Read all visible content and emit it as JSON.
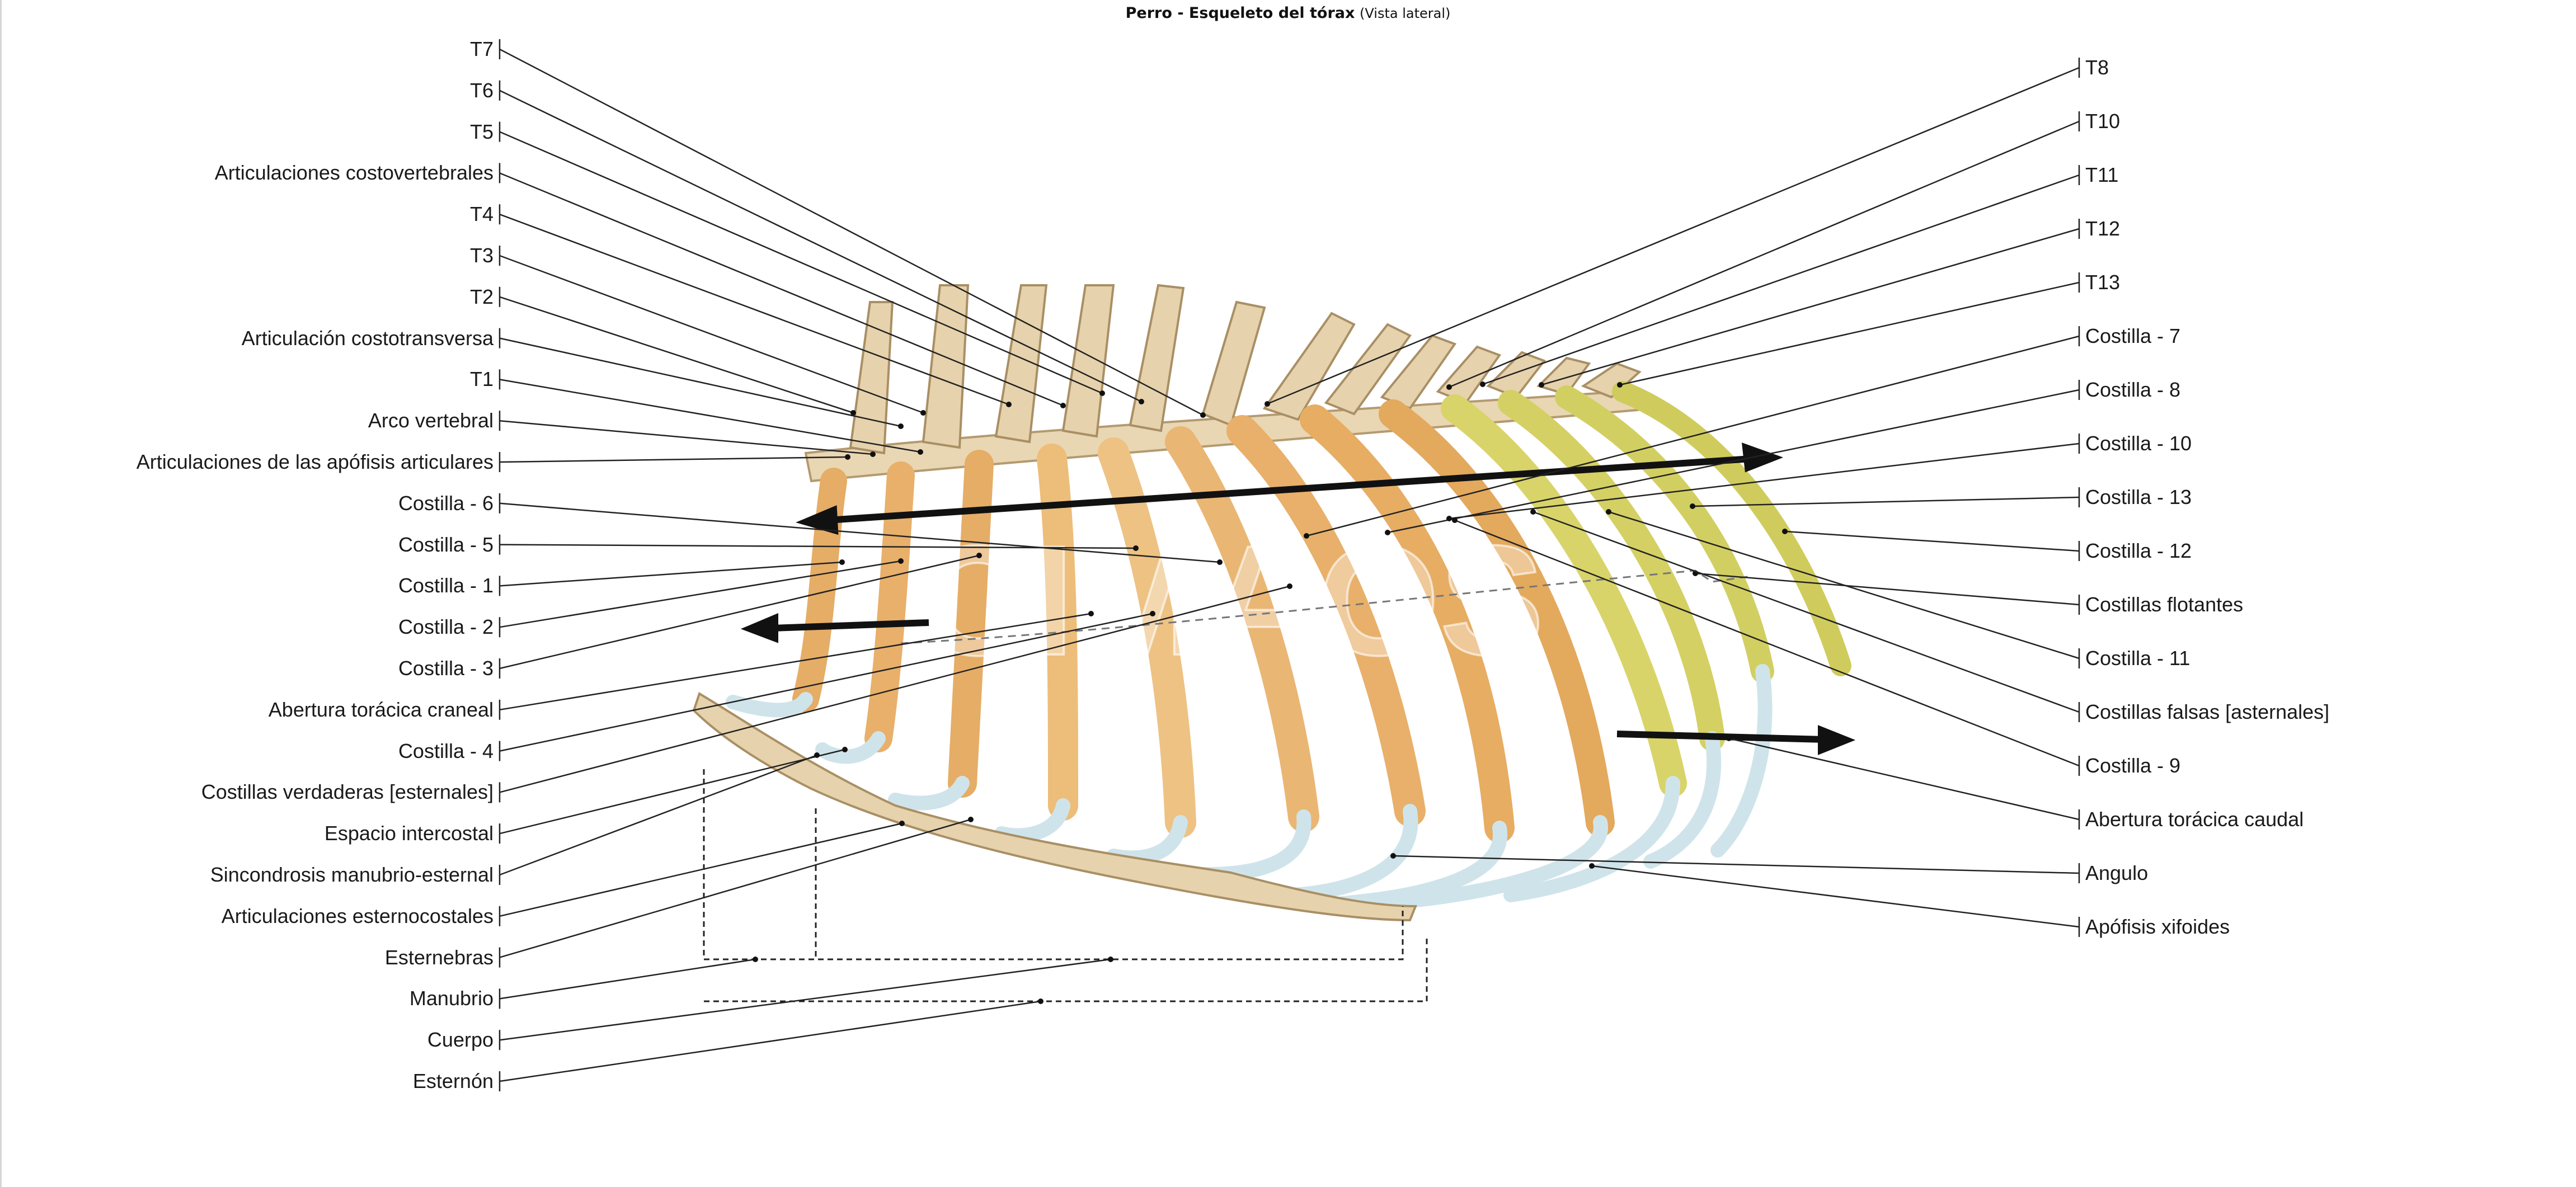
{
  "title": {
    "main": "Perro - Esqueleto del tórax",
    "sub": "(Vista lateral)"
  },
  "watermark": "CIMAOS",
  "colors": {
    "rib_orange": "#e8b06a",
    "rib_light": "#f0cf9a",
    "rib_yellow": "#d9d96a",
    "cartilage": "#cfe4ea",
    "bone_pale": "#ead9b8",
    "leader": "#222222"
  },
  "labels_left": [
    "T7",
    "T6",
    "T5",
    "Articulaciones costovertebrales",
    "T4",
    "T3",
    "T2",
    "Articulación costotransversa",
    "T1",
    "Arco vertebral",
    "Articulaciones de las apófisis articulares",
    "Costilla - 6",
    "Costilla - 5",
    "Costilla - 1",
    "Costilla - 2",
    "Costilla - 3",
    "Abertura torácica craneal",
    "Costilla - 4",
    "Costillas verdaderas [esternales]",
    "Espacio intercostal",
    "Sincondrosis manubrio-esternal",
    "Articulaciones esternocostales",
    "Esternebras",
    "Manubrio",
    "Cuerpo",
    "Esternón"
  ],
  "labels_right": [
    "T8",
    "T10",
    "T11",
    "T12",
    "T13",
    "Costilla - 7",
    "Costilla - 8",
    "Costilla - 10",
    "Costilla - 13",
    "Costilla - 12",
    "Costillas flotantes",
    "Costilla - 11",
    "Costillas falsas [asternales]",
    "Costilla - 9",
    "Abertura torácica caudal",
    "Angulo",
    "Apófisis xifoides"
  ]
}
